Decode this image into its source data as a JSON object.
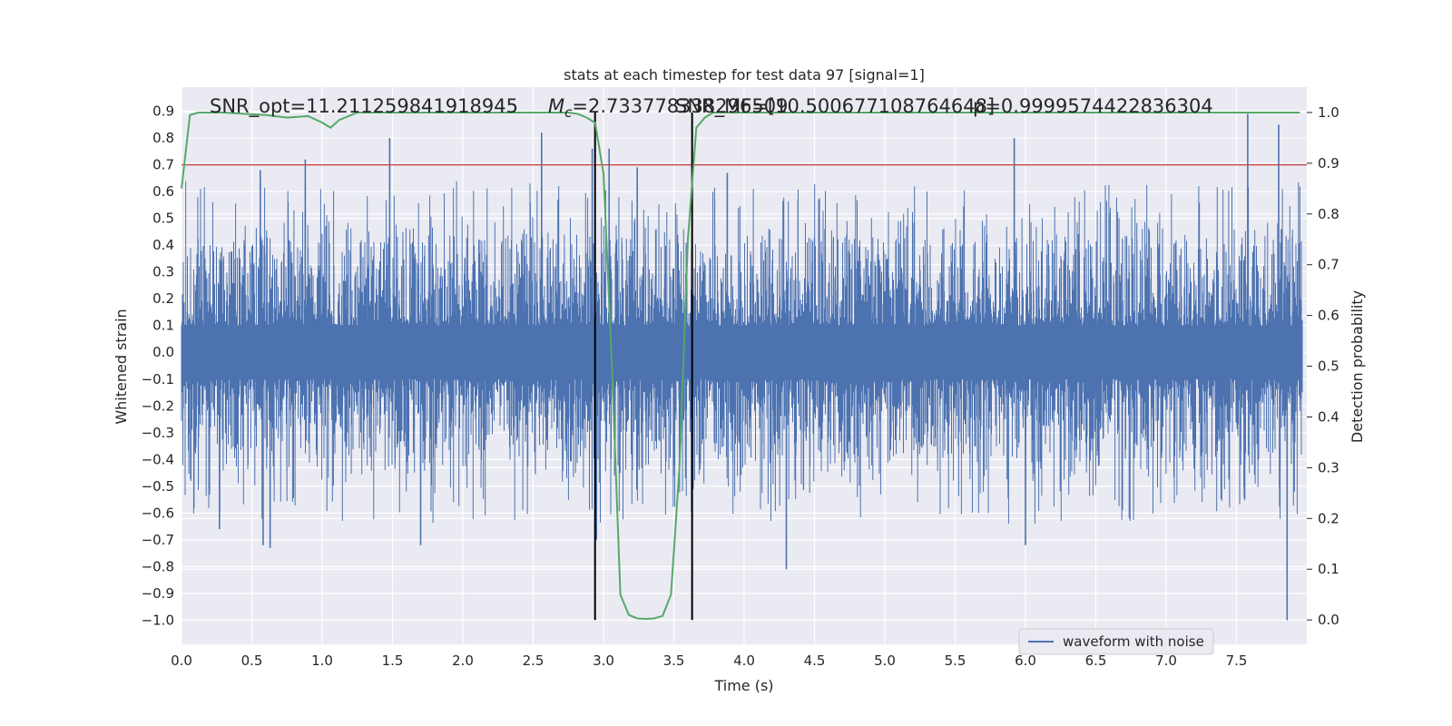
{
  "chart_data": {
    "type": "line",
    "title": "stats at each timestep for test data 97 [signal=1]",
    "xlabel": "Time (s)",
    "ylabel": "Whitened strain",
    "y2label": "Detection probability",
    "xlim": [
      0.0,
      8.0
    ],
    "ylim": [
      -1.09,
      0.99
    ],
    "y2lim": [
      -0.048,
      1.05
    ],
    "xticks": [
      "0.0",
      "0.5",
      "1.0",
      "1.5",
      "2.0",
      "2.5",
      "3.0",
      "3.5",
      "4.0",
      "4.5",
      "5.0",
      "5.5",
      "6.0",
      "6.5",
      "7.0",
      "7.5"
    ],
    "yticks": [
      "0.9",
      "0.8",
      "0.7",
      "0.6",
      "0.5",
      "0.4",
      "0.3",
      "0.2",
      "0.1",
      "0.0",
      "-0.1",
      "-0.2",
      "-0.3",
      "-0.4",
      "-0.5",
      "-0.6",
      "-0.7",
      "-0.8",
      "-0.9",
      "-1.0"
    ],
    "y2ticks": [
      "1.0",
      "0.9",
      "0.8",
      "0.7",
      "0.6",
      "0.5",
      "0.4",
      "0.3",
      "0.2",
      "0.1",
      "0.0"
    ],
    "grid": true,
    "legend": {
      "position": "lower-right",
      "entries": [
        "waveform with noise"
      ]
    },
    "annotations": {
      "snr_opt": "SNR_opt=11.211259841918945",
      "mc_symbol": "M",
      "mc_sub": "c",
      "mc_value": "=2.733778338296509",
      "snr_mf": "SNR_MF=[10.500677108764648]",
      "p_value": "p=0.9999574422836304"
    },
    "threshold": {
      "value": 0.7,
      "color": "#c44e52"
    },
    "event_window": {
      "start": 2.94,
      "end": 3.63,
      "color": "#000000"
    },
    "series": [
      {
        "name": "waveform with noise",
        "color": "#4c72b0",
        "axis": "left",
        "envelope": {
          "typical_max": 0.42,
          "typical_min": -0.42,
          "noise_floor": 0.1
        },
        "peaks": [
          {
            "x": 0.56,
            "y": 0.68
          },
          {
            "x": 0.88,
            "y": 0.72
          },
          {
            "x": 1.48,
            "y": 0.8
          },
          {
            "x": 2.56,
            "y": 0.82
          },
          {
            "x": 2.92,
            "y": 0.76
          },
          {
            "x": 3.04,
            "y": 0.76
          },
          {
            "x": 3.24,
            "y": 0.69
          },
          {
            "x": 3.88,
            "y": 0.67
          },
          {
            "x": 5.92,
            "y": 0.8
          },
          {
            "x": 7.58,
            "y": 0.89
          },
          {
            "x": 7.8,
            "y": 0.85
          }
        ],
        "troughs": [
          {
            "x": 0.27,
            "y": -0.66
          },
          {
            "x": 0.58,
            "y": -0.72
          },
          {
            "x": 0.63,
            "y": -0.73
          },
          {
            "x": 1.7,
            "y": -0.72
          },
          {
            "x": 2.95,
            "y": -0.7
          },
          {
            "x": 4.3,
            "y": -0.81
          },
          {
            "x": 6.0,
            "y": -0.72
          },
          {
            "x": 7.86,
            "y": -1.0
          }
        ]
      },
      {
        "name": "",
        "color": "#55a868",
        "axis": "right",
        "x": [
          0.0,
          0.06,
          0.12,
          0.3,
          0.6,
          0.75,
          0.9,
          1.0,
          1.06,
          1.12,
          1.25,
          1.4,
          1.6,
          1.8,
          2.0,
          2.2,
          2.4,
          2.6,
          2.75,
          2.82,
          2.88,
          2.94,
          3.0,
          3.06,
          3.12,
          3.18,
          3.24,
          3.3,
          3.36,
          3.42,
          3.48,
          3.54,
          3.6,
          3.66,
          3.72,
          3.78,
          3.84,
          3.9,
          4.2,
          4.6,
          5.0,
          5.5,
          6.0,
          6.5,
          7.0,
          7.5,
          7.95
        ],
        "y": [
          0.85,
          0.995,
          1.0,
          1.0,
          0.995,
          0.99,
          0.993,
          0.98,
          0.97,
          0.985,
          1.0,
          1.0,
          1.0,
          1.0,
          1.0,
          1.0,
          1.0,
          1.0,
          1.0,
          0.997,
          0.99,
          0.98,
          0.88,
          0.5,
          0.05,
          0.01,
          0.003,
          0.002,
          0.003,
          0.008,
          0.05,
          0.3,
          0.75,
          0.97,
          0.99,
          1.0,
          1.0,
          1.0,
          1.0,
          1.0,
          1.0,
          1.0,
          1.0,
          1.0,
          1.0,
          1.0,
          1.0
        ]
      }
    ]
  }
}
